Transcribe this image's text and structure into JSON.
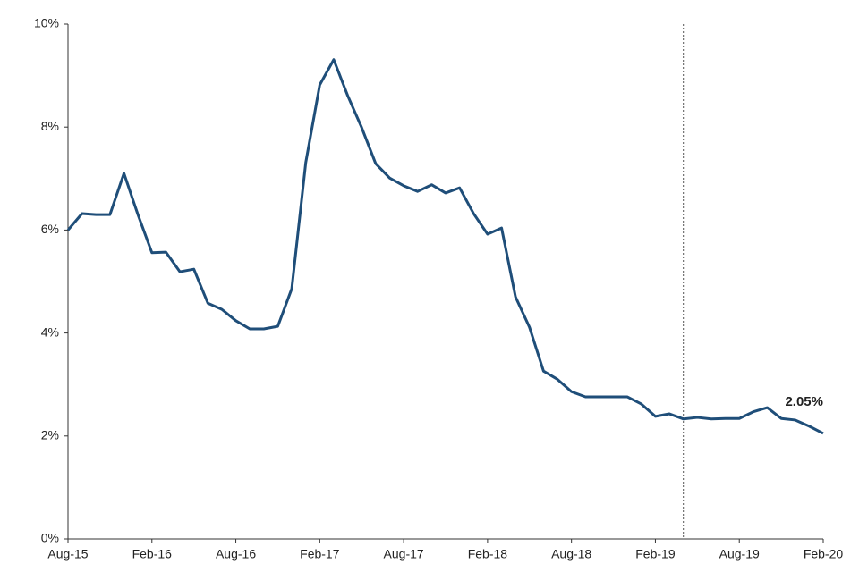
{
  "chart_data": {
    "type": "line",
    "categories": [
      "Aug-15",
      null,
      null,
      null,
      null,
      null,
      "Feb-16",
      null,
      null,
      null,
      null,
      null,
      "Aug-16",
      null,
      null,
      null,
      null,
      null,
      "Feb-17",
      null,
      null,
      null,
      null,
      null,
      "Aug-17",
      null,
      null,
      null,
      null,
      null,
      "Feb-18",
      null,
      null,
      null,
      null,
      null,
      "Aug-18",
      null,
      null,
      null,
      null,
      null,
      "Feb-19",
      null,
      null,
      null,
      null,
      null,
      "Aug-19",
      null,
      null,
      null,
      null,
      null,
      "Feb-20"
    ],
    "series": [
      {
        "color": "#1f4e79",
        "values": [
          6.0,
          6.32,
          6.3,
          6.3,
          7.1,
          6.3,
          5.56,
          5.57,
          5.19,
          5.24,
          4.58,
          4.46,
          4.24,
          4.08,
          4.08,
          4.13,
          4.86,
          7.31,
          8.82,
          9.31,
          8.61,
          7.99,
          7.29,
          7.01,
          6.86,
          6.75,
          6.88,
          6.72,
          6.82,
          6.32,
          5.92,
          6.04,
          4.7,
          4.11,
          3.26,
          3.1,
          2.86,
          2.76,
          2.76,
          2.76,
          2.76,
          2.62,
          2.38,
          2.43,
          2.33,
          2.36,
          2.33,
          2.34,
          2.34,
          2.47,
          2.55,
          2.34,
          2.31,
          2.19,
          2.05
        ],
        "value_labels": [
          null,
          null,
          null,
          null,
          null,
          null,
          null,
          null,
          null,
          null,
          null,
          null,
          null,
          null,
          null,
          null,
          null,
          null,
          null,
          null,
          null,
          null,
          null,
          null,
          null,
          null,
          null,
          null,
          null,
          null,
          null,
          null,
          null,
          null,
          null,
          null,
          null,
          null,
          null,
          null,
          null,
          null,
          null,
          null,
          null,
          null,
          null,
          null,
          null,
          null,
          null,
          null,
          null,
          null,
          "2.05%"
        ]
      }
    ],
    "ylim": [
      0,
      10
    ],
    "yticks": [
      {
        "value": 0,
        "label": "0%"
      },
      {
        "value": 2,
        "label": "2%"
      },
      {
        "value": 4,
        "label": "4%"
      },
      {
        "value": 6,
        "label": "6%"
      },
      {
        "value": 8,
        "label": "8%"
      },
      {
        "value": 10,
        "label": "10%"
      }
    ],
    "vertical_line_at": 44,
    "grid": false
  }
}
